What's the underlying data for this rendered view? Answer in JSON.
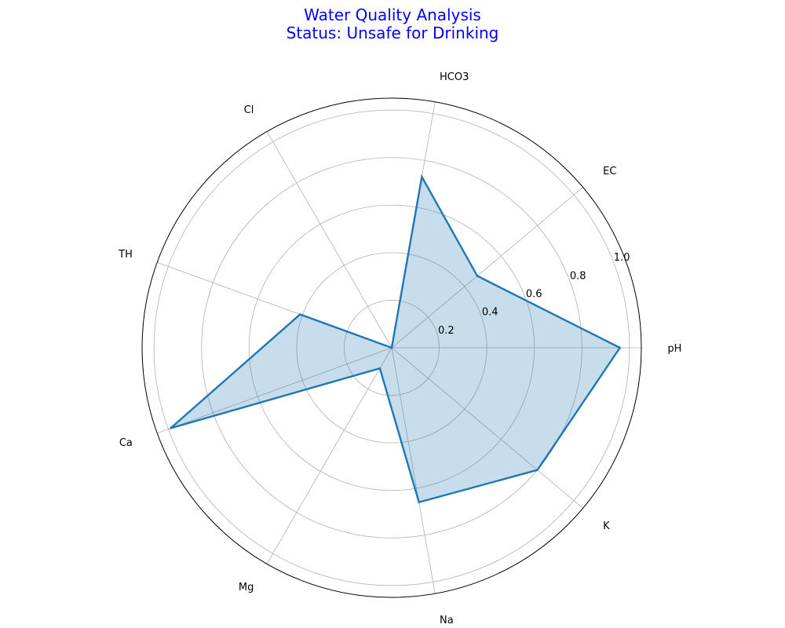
{
  "chart_data": {
    "type": "radar",
    "title_line1": "Water Quality Analysis",
    "title_line2": "Status: Unsafe for Drinking",
    "title_color": "#0000ff",
    "categories": [
      "pH",
      "EC",
      "HCO3",
      "Cl",
      "TH",
      "Ca",
      "Mg",
      "Na",
      "K"
    ],
    "series": [
      {
        "values": [
          0.96,
          0.47,
          0.73,
          0.0,
          0.41,
          0.99,
          0.1,
          0.66,
          0.8
        ],
        "color": "#1f77b4"
      }
    ],
    "rlim": [
      0,
      1.05
    ],
    "r_ticks": [
      0.2,
      0.4,
      0.6,
      0.8,
      1.0
    ],
    "r_tick_labels": [
      "0.2",
      "0.4",
      "0.6",
      "0.8",
      "1.0"
    ],
    "grid": true
  }
}
